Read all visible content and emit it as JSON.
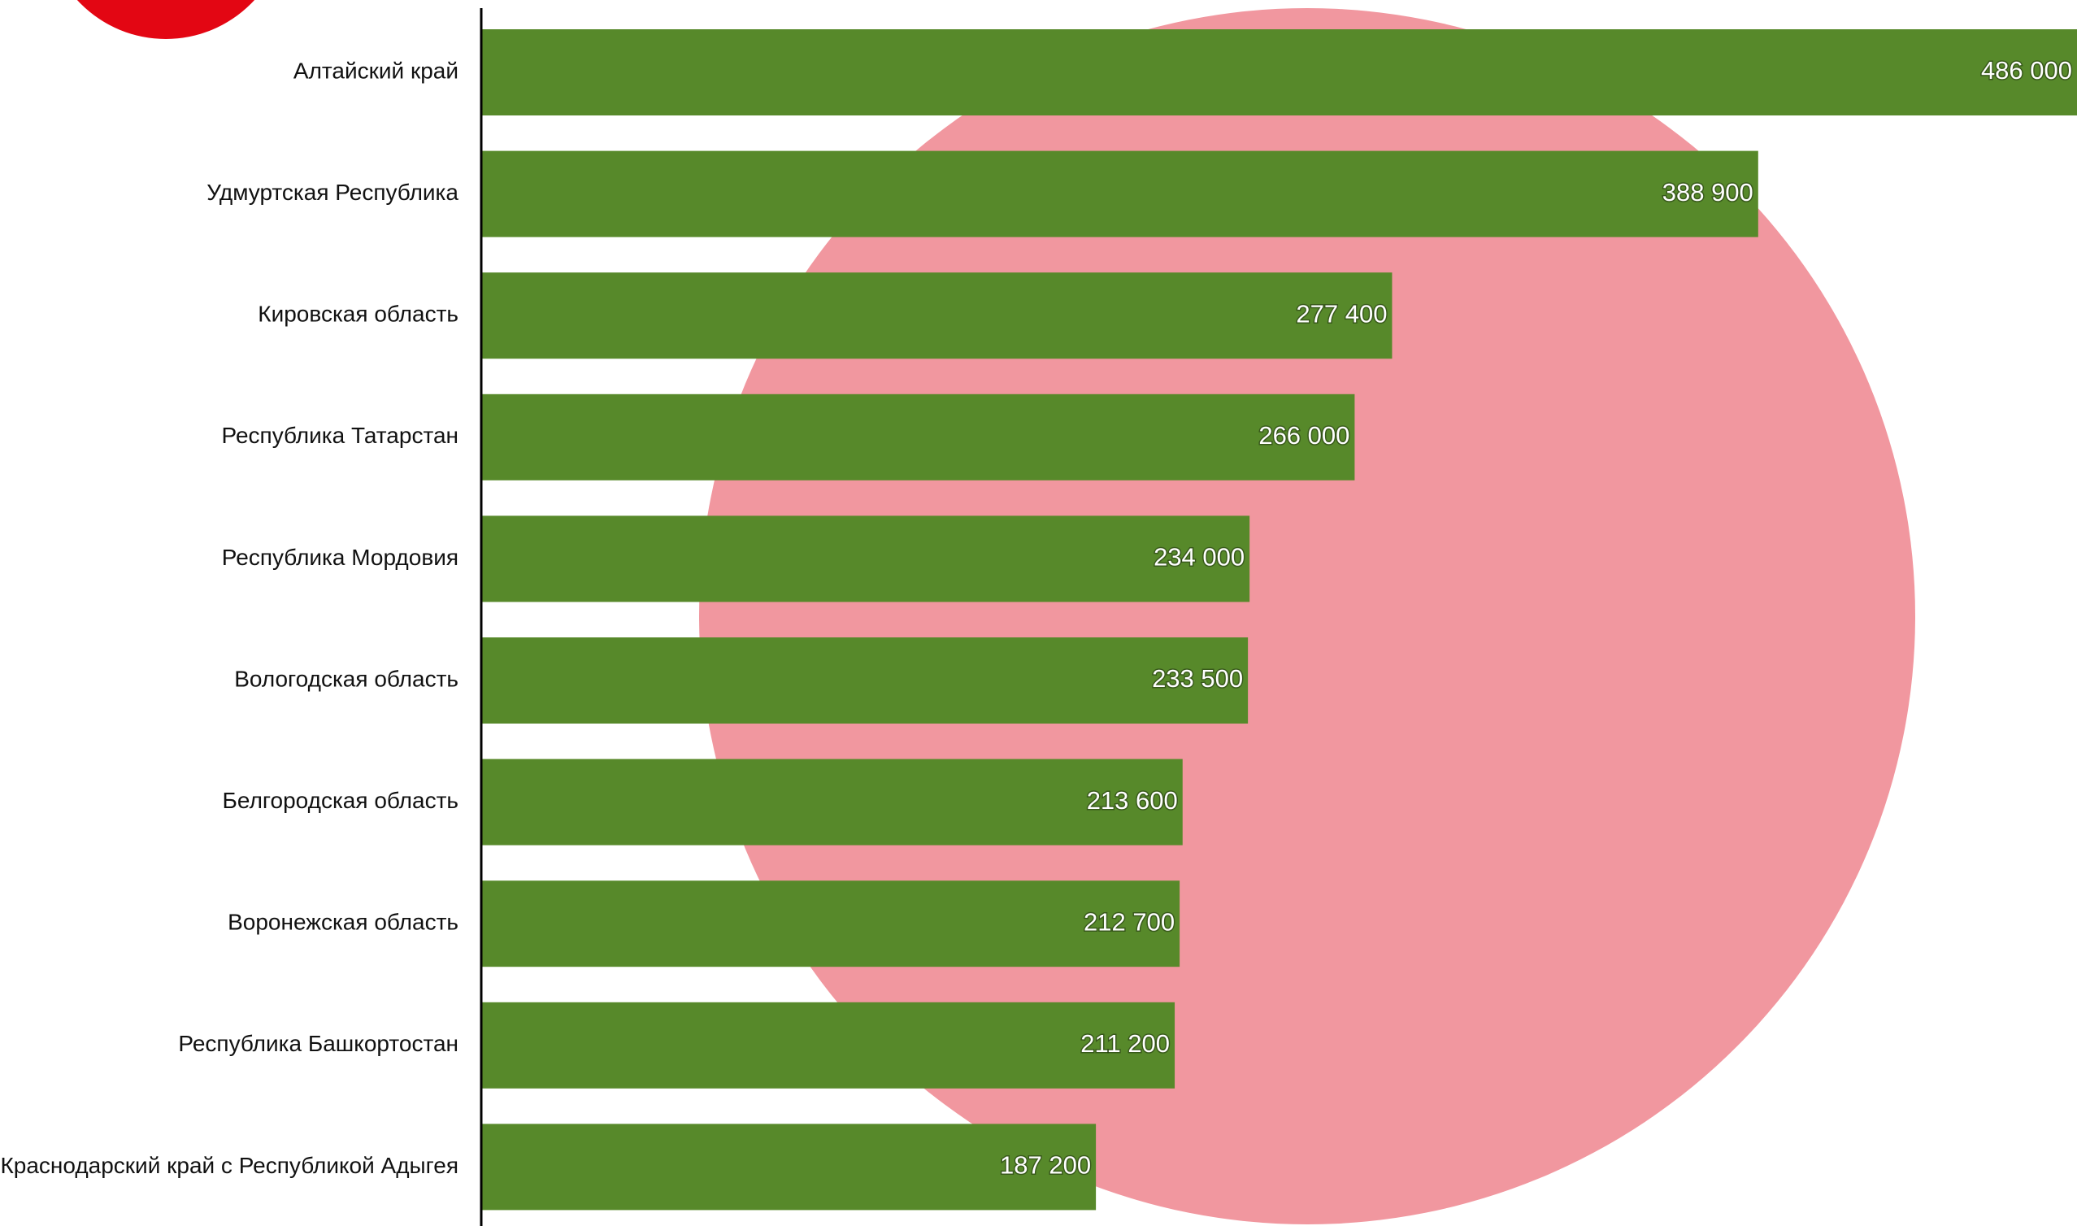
{
  "chart_data": {
    "type": "bar",
    "orientation": "horizontal",
    "categories": [
      "Алтайский край",
      "Удмуртская Республика",
      "Кировская область",
      "Республика Татарстан",
      "Республика Мордовия",
      "Вологодская область",
      "Белгородская область",
      "Воронежская область",
      "Республика Башкортостан",
      "Краснодарский край с Республикой Адыгея"
    ],
    "values": [
      486000,
      388900,
      277400,
      266000,
      234000,
      233500,
      213600,
      212700,
      211200,
      187200
    ],
    "value_labels": [
      "486 000",
      "388 900",
      "277 400",
      "266 000",
      "234 000",
      "233 500",
      "213 600",
      "212 700",
      "211 200",
      "187 200"
    ],
    "color": "#57892a",
    "xlim": [
      0,
      486000
    ]
  }
}
